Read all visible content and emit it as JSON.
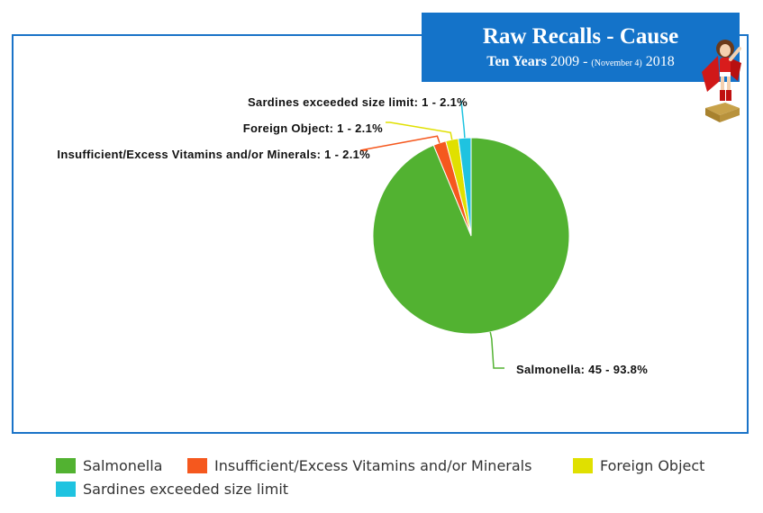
{
  "title": {
    "main": "Raw Recalls - Cause",
    "sub_bold": "Ten Years",
    "sub_start": "2009 -",
    "sub_note": "(November 4)",
    "sub_end": "2018"
  },
  "chart_data": {
    "type": "pie",
    "slices": [
      {
        "name": "Salmonella",
        "value": 45,
        "percent": 93.8,
        "color": "#52b231",
        "label": "Salmonella: 45 - 93.8%"
      },
      {
        "name": "Insufficient/Excess Vitamins and/or Minerals",
        "value": 1,
        "percent": 2.1,
        "color": "#f5581e",
        "label": "Insufficient/Excess Vitamins and/or Minerals: 1 - 2.1%"
      },
      {
        "name": "Foreign Object",
        "value": 1,
        "percent": 2.1,
        "color": "#e0e000",
        "label": "Foreign Object: 1 - 2.1%"
      },
      {
        "name": "Sardines exceeded size limit",
        "value": 1,
        "percent": 2.1,
        "color": "#1fc3e0",
        "label": "Sardines exceeded size limit: 1 - 2.1%"
      }
    ],
    "legend_position": "bottom"
  },
  "legend": [
    {
      "label": "Salmonella",
      "color": "#52b231"
    },
    {
      "label": "Insufficient/Excess Vitamins and/or Minerals",
      "color": "#f5581e"
    },
    {
      "label": "Foreign Object",
      "color": "#e0e000"
    },
    {
      "label": "Sardines exceeded size limit",
      "color": "#1fc3e0"
    }
  ]
}
